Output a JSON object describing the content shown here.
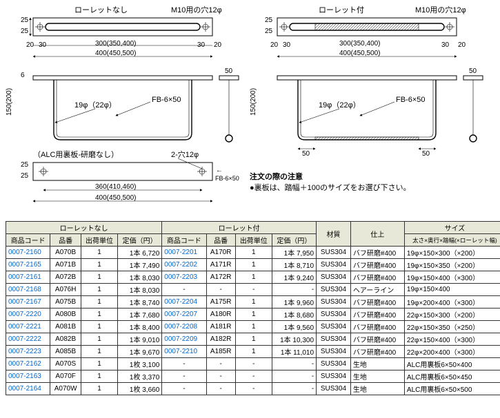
{
  "diagram_labels": {
    "no_knurl": "ローレットなし",
    "with_knurl": "ローレット付",
    "hole_m10": "M10用の穴12φ",
    "fb": "FB-6×50",
    "dia": "19φ（22φ）",
    "alc_back": "（ALC用裏板-研磨なし）",
    "hole2": "2-穴12φ",
    "dim_300": "300(350,400)",
    "dim_400": "400(450,500)",
    "dim_360": "360(410,460)",
    "dim_150": "150(200)",
    "d25a": "25",
    "d25b": "25",
    "d20": "20",
    "d30": "30",
    "d6": "6",
    "d50": "50"
  },
  "note": {
    "title": "注文の際の注意",
    "body": "●裏板は、踏幅＋100のサイズをお選び下さい。"
  },
  "headers": {
    "group_no": "ローレットなし",
    "group_with": "ローレット付",
    "code": "商品コード",
    "pn": "品番",
    "unit": "出荷単位",
    "price": "定価（円）",
    "material": "材質",
    "finish": "仕上",
    "size": "サイズ",
    "size_sub": "太さ×奥行×踏幅(×ローレット幅)"
  },
  "rows": [
    {
      "c1": "0007-2160",
      "p1": "A070B",
      "u1": "1",
      "pr1": "1本 6,720",
      "c2": "0007-2201",
      "p2": "A170R",
      "u2": "1",
      "pr2": "1本 7,950",
      "mat": "SUS304",
      "fin": "バフ研磨#400",
      "size": "19φ×150×300（×200）"
    },
    {
      "c1": "0007-2165",
      "p1": "A071B",
      "u1": "1",
      "pr1": "1本 7,490",
      "c2": "0007-2202",
      "p2": "A171R",
      "u2": "1",
      "pr2": "1本 8,710",
      "mat": "SUS304",
      "fin": "バフ研磨#400",
      "size": "19φ×150×350（×200）"
    },
    {
      "c1": "0007-2161",
      "p1": "A072B",
      "u1": "1",
      "pr1": "1本 8,030",
      "c2": "0007-2203",
      "p2": "A172R",
      "u2": "1",
      "pr2": "1本 9,240",
      "mat": "SUS304",
      "fin": "バフ研磨#400",
      "size": "19φ×150×400（×300）"
    },
    {
      "c1": "0007-2168",
      "p1": "A076H",
      "u1": "1",
      "pr1": "1本 8,030",
      "c2": "-",
      "p2": "-",
      "u2": "-",
      "pr2": "-",
      "mat": "SUS304",
      "fin": "ヘアーライン",
      "size": "19φ×150×400"
    },
    {
      "c1": "0007-2167",
      "p1": "A075B",
      "u1": "1",
      "pr1": "1本 8,740",
      "c2": "0007-2204",
      "p2": "A175R",
      "u2": "1",
      "pr2": "1本 9,960",
      "mat": "SUS304",
      "fin": "バフ研磨#400",
      "size": "19φ×200×400（×300）"
    },
    {
      "c1": "0007-2220",
      "p1": "A080B",
      "u1": "1",
      "pr1": "1本 7,680",
      "c2": "0007-2207",
      "p2": "A180R",
      "u2": "1",
      "pr2": "1本 8,680",
      "mat": "SUS304",
      "fin": "バフ研磨#400",
      "size": "22φ×150×300（×200）"
    },
    {
      "c1": "0007-2221",
      "p1": "A081B",
      "u1": "1",
      "pr1": "1本 8,400",
      "c2": "0007-2208",
      "p2": "A181R",
      "u2": "1",
      "pr2": "1本 9,560",
      "mat": "SUS304",
      "fin": "バフ研磨#400",
      "size": "22φ×150×350（×250）"
    },
    {
      "c1": "0007-2222",
      "p1": "A082B",
      "u1": "1",
      "pr1": "1本 9,010",
      "c2": "0007-2209",
      "p2": "A182R",
      "u2": "1",
      "pr2": "1本 10,300",
      "mat": "SUS304",
      "fin": "バフ研磨#400",
      "size": "22φ×150×400（×300）"
    },
    {
      "c1": "0007-2223",
      "p1": "A085B",
      "u1": "1",
      "pr1": "1本 9,670",
      "c2": "0007-2210",
      "p2": "A185R",
      "u2": "1",
      "pr2": "1本 11,010",
      "mat": "SUS304",
      "fin": "バフ研磨#400",
      "size": "22φ×200×400（×300）"
    },
    {
      "c1": "0007-2162",
      "p1": "A070S",
      "u1": "1",
      "pr1": "1枚 3,100",
      "c2": "-",
      "p2": "-",
      "u2": "-",
      "pr2": "-",
      "mat": "SUS304",
      "fin": "生地",
      "size": "ALC用裏板6×50×400"
    },
    {
      "c1": "0007-2163",
      "p1": "A070F",
      "u1": "1",
      "pr1": "1枚 3,370",
      "c2": "-",
      "p2": "-",
      "u2": "-",
      "pr2": "-",
      "mat": "SUS304",
      "fin": "生地",
      "size": "ALC用裏板6×50×450"
    },
    {
      "c1": "0007-2164",
      "p1": "A070W",
      "u1": "1",
      "pr1": "1枚 3,660",
      "c2": "-",
      "p2": "-",
      "u2": "-",
      "pr2": "-",
      "mat": "SUS304",
      "fin": "生地",
      "size": "ALC用裏板6×50×500"
    }
  ]
}
